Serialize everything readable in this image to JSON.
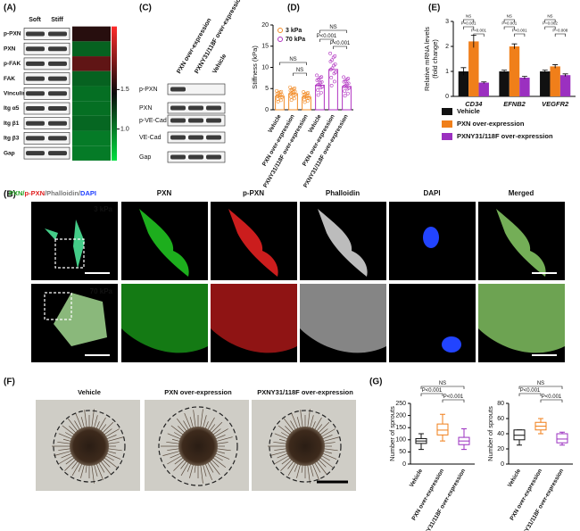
{
  "panels": {
    "A": "(A)",
    "B": "(B)",
    "C": "(C)",
    "D": "(D)",
    "E": "(E)",
    "F": "(F)",
    "G": "(G)"
  },
  "panel_a": {
    "columns": [
      "Soft",
      "Stiff"
    ],
    "rows": [
      "p-PXN",
      "PXN",
      "p-FAK",
      "FAK",
      "Vinculin",
      "Itg α5",
      "Itg β1",
      "Itg β3",
      "Gap"
    ]
  },
  "panel_c": {
    "columns": [
      "PXN over-expression",
      "PXNY31/118F over-expression",
      "Vehicle"
    ],
    "rows": [
      "p-PXN",
      "PXN",
      "p-VE-Cad",
      "VE-Cad",
      "Gap"
    ]
  },
  "panel_b": {
    "merged_label": [
      "PXN/",
      "p-PXN",
      "/Phalloidin/",
      "DAPI"
    ],
    "channels": [
      "PXN",
      "p-PXN",
      "Phalloidin",
      "DAPI",
      "Merged"
    ],
    "conditions": [
      "3 kPa",
      "70 kPa"
    ]
  },
  "panel_f": {
    "columns": [
      "Vehicle",
      "PXN over-expression",
      "PXNY31/118F over-expression"
    ]
  },
  "chart_data": [
    {
      "type": "heatmap",
      "values": [
        1.55,
        1.1,
        1.75,
        1.1,
        1.05,
        1.05,
        1.08,
        1.0,
        1.0
      ],
      "colors": [
        "#00e040",
        "#0a0a0a",
        "#ff2a2a"
      ],
      "clim": [
        0.6,
        2.3
      ],
      "cticks": [
        {
          "value": 1,
          "label": "1.0"
        },
        1.5
      ]
    },
    {
      "type": "bar",
      "ylabel": [
        "Stiffness (kPa)"
      ],
      "categories": [
        "Vehicle",
        "PXN over-expression",
        "PXNY31/118F over-expression",
        "Vehicle",
        "PXN over-expression",
        "PXNY31/118F over-expression"
      ],
      "series": [
        {
          "name": "3 kPa",
          "color": "#f28c28",
          "values": [
            3.2,
            3.8,
            3.0,
            null,
            null,
            null
          ]
        },
        {
          "name": "70 kPa",
          "color": "#b030c0",
          "values": [
            null,
            null,
            null,
            5.8,
            9.5,
            5.5
          ]
        }
      ],
      "ylim": [
        0,
        20
      ],
      "yticks": [
        0,
        5,
        10,
        15,
        20
      ],
      "annotations": [
        "NS",
        "NS",
        "NS",
        "P<0.001",
        "P<0.001"
      ]
    },
    {
      "type": "bar",
      "ylabel": [
        "Relative mRNA levels",
        "(fold change)"
      ],
      "categories": [
        "CD34",
        "EFNB2",
        "VEGFR2"
      ],
      "series": [
        {
          "name": "Vehicle",
          "color": "#111111",
          "values": [
            1.0,
            1.0,
            1.0
          ],
          "errors": [
            0.15,
            0.05,
            0.05
          ]
        },
        {
          "name": "PXN over-expression",
          "color": "#f07f1a",
          "values": [
            2.2,
            2.0,
            1.2
          ],
          "errors": [
            0.25,
            0.1,
            0.07
          ]
        },
        {
          "name": "PXNY31/118F over-expression",
          "color": "#9b30c0",
          "values": [
            0.55,
            0.75,
            0.85
          ],
          "errors": [
            0.03,
            0.05,
            0.05
          ]
        }
      ],
      "ylim": [
        0,
        3
      ],
      "yticks": [
        0,
        1,
        2,
        3
      ],
      "annotations": [
        "NS",
        "P<0.001",
        "P<0.001",
        "NS",
        "P<0.001",
        "P<0.001",
        "NS",
        "P=0.002",
        "P=0.008"
      ]
    },
    {
      "type": "box",
      "ylabel": [
        "Number of sprouts"
      ],
      "categories": [
        "Vehicle",
        "PXN over-expression",
        "PXNY31/118F over-expression"
      ],
      "colors": [
        "#111111",
        "#f07f1a",
        "#9b30c0"
      ],
      "boxes": [
        {
          "min": 60,
          "q1": 85,
          "median": 95,
          "q3": 105,
          "max": 125
        },
        {
          "min": 95,
          "q1": 120,
          "median": 140,
          "q3": 165,
          "max": 205
        },
        {
          "min": 60,
          "q1": 80,
          "median": 95,
          "q3": 110,
          "max": 145
        }
      ],
      "ylim": [
        0,
        250
      ],
      "yticks": [
        0,
        50,
        100,
        150,
        200,
        250
      ],
      "annotations": [
        "NS",
        "P<0.001",
        "P<0.001"
      ]
    },
    {
      "type": "box",
      "ylabel": [
        "Number of sprouts"
      ],
      "categories": [
        "Vehicle",
        "PXN over-expression",
        "PXNY31/118F over-expression"
      ],
      "colors": [
        "#111111",
        "#f07f1a",
        "#9b30c0"
      ],
      "boxes": [
        {
          "min": 25,
          "q1": 32,
          "median": 38,
          "q3": 45,
          "max": 45
        },
        {
          "min": 40,
          "q1": 45,
          "median": 50,
          "q3": 55,
          "max": 60
        },
        {
          "min": 25,
          "q1": 28,
          "median": 33,
          "q3": 40,
          "max": 42
        }
      ],
      "ylim": [
        0,
        80
      ],
      "yticks": [
        0,
        20,
        40,
        60,
        80
      ],
      "annotations": [
        "NS",
        "P<0.001",
        "P<0.001"
      ]
    }
  ]
}
